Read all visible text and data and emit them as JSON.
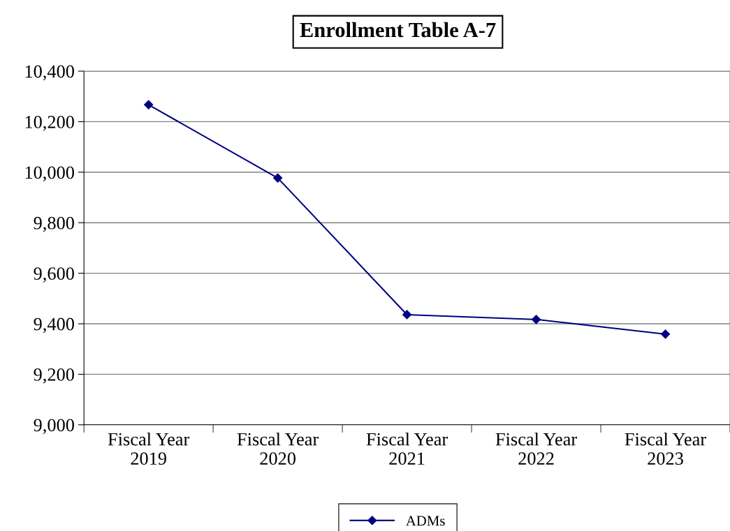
{
  "chart_data": {
    "type": "line",
    "title": "Enrollment Table A-7",
    "categories": [
      "Fiscal Year\n2019",
      "Fiscal Year\n2020",
      "Fiscal Year\n2021",
      "Fiscal Year\n2022",
      "Fiscal Year\n2023"
    ],
    "series": [
      {
        "name": "ADMs",
        "color": "#000080",
        "values": [
          10267,
          9977,
          9436,
          9417,
          9359
        ]
      }
    ],
    "ylim": [
      9000,
      10400
    ],
    "yticks": [
      {
        "value": 9000,
        "label": "9,000"
      },
      {
        "value": 9200,
        "label": "9,200"
      },
      {
        "value": 9400,
        "label": "9,400"
      },
      {
        "value": 9600,
        "label": "9,600"
      },
      {
        "value": 9800,
        "label": "9,800"
      },
      {
        "value": 10000,
        "label": "10,000"
      },
      {
        "value": 10200,
        "label": "10,200"
      },
      {
        "value": 10400,
        "label": "10,400"
      }
    ],
    "grid": "y",
    "legend": "bottom",
    "marker": "diamond",
    "line_style": "solid"
  }
}
